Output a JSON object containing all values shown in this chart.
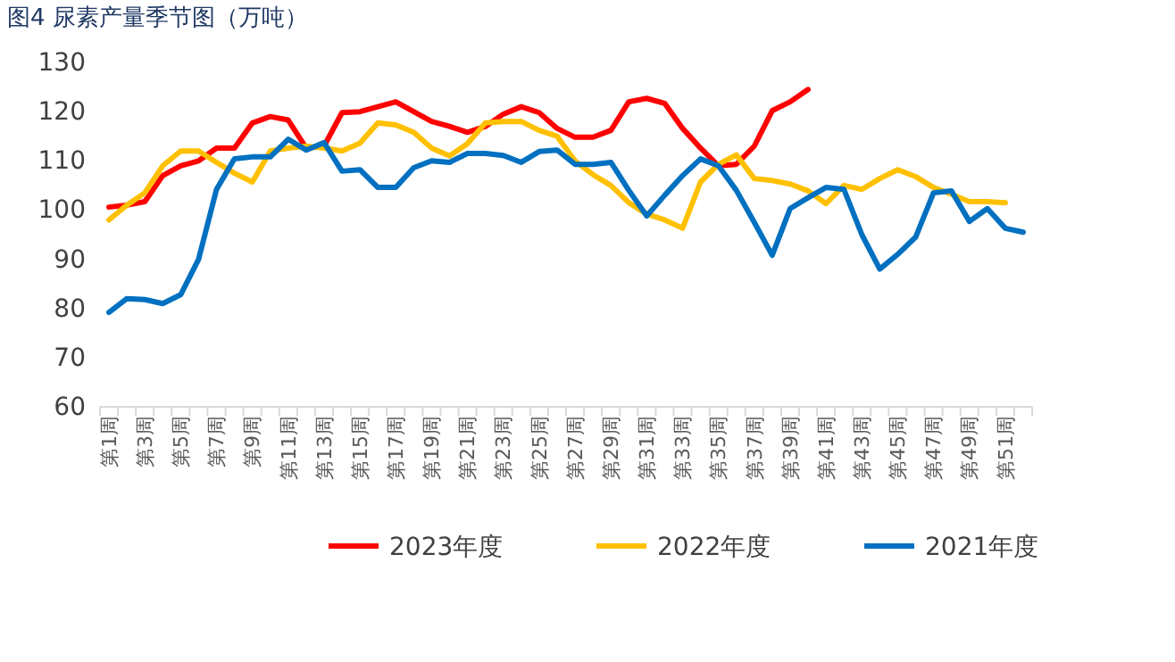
{
  "chart_data": {
    "type": "line",
    "title": "图4 尿素产量季节图（万吨）",
    "categories": [
      "第1周",
      null,
      "第3周",
      null,
      "第5周",
      null,
      "第7周",
      null,
      "第9周",
      null,
      "第11周",
      null,
      "第13周",
      null,
      "第15周",
      null,
      "第17周",
      null,
      "第19周",
      null,
      "第21周",
      null,
      "第23周",
      null,
      "第25周",
      null,
      "第27周",
      null,
      "第29周",
      null,
      "第31周",
      null,
      "第33周",
      null,
      "第35周",
      null,
      "第37周",
      null,
      "第39周",
      null,
      "第41周",
      null,
      "第43周",
      null,
      "第45周",
      null,
      "第47周",
      null,
      "第49周",
      null,
      "第51周",
      null
    ],
    "series": [
      {
        "name": "2023年度",
        "color": "#ff0000",
        "values": [
          100.6,
          101,
          101.7,
          107,
          109,
          110,
          112.6,
          112.6,
          117.7,
          119,
          118.3,
          112.6,
          113,
          119.8,
          120,
          121,
          122,
          120,
          118,
          117,
          115.8,
          117,
          119.5,
          121,
          119.8,
          116.6,
          114.8,
          114.8,
          116.2,
          122,
          122.7,
          121.7,
          116.6,
          112.6,
          109,
          109.3,
          113,
          120.2,
          122,
          124.5,
          null,
          null,
          null,
          null,
          null,
          null,
          null,
          null,
          null,
          null,
          null,
          null
        ]
      },
      {
        "name": "2022年度",
        "color": "#ffc000",
        "values": [
          98,
          101,
          103.5,
          109,
          112,
          112,
          109.7,
          107.5,
          105.7,
          112,
          112.6,
          113,
          112.6,
          112,
          113.6,
          117.7,
          117.3,
          115.8,
          112.6,
          111,
          113.5,
          117.7,
          118,
          118,
          116.2,
          115,
          110,
          107.2,
          105,
          101.5,
          99.2,
          98,
          96.3,
          105.7,
          109.3,
          111.2,
          106.4,
          106,
          105.3,
          103.9,
          101.3,
          105,
          104.2,
          106.4,
          108.2,
          106.8,
          104.6,
          103.2,
          101.7,
          101.7,
          101.5,
          null
        ]
      },
      {
        "name": "2021年度",
        "color": "#0070c0",
        "values": [
          79.2,
          82,
          81.8,
          81,
          82.8,
          90,
          104.2,
          110.4,
          110.8,
          110.8,
          114.4,
          112.2,
          113.7,
          107.9,
          108.2,
          104.6,
          104.6,
          108.6,
          110,
          109.7,
          111.5,
          111.5,
          111.1,
          109.7,
          111.9,
          112.2,
          109.3,
          109.3,
          109.7,
          104,
          98.8,
          103,
          107,
          110.4,
          109,
          104,
          97.5,
          90.8,
          100.3,
          102.5,
          104.6,
          104.2,
          95,
          88,
          91,
          94.5,
          103.5,
          103.9,
          97.7,
          100.3,
          96.3,
          95.5
        ]
      }
    ],
    "ylim": [
      60,
      130
    ],
    "yticks": [
      60,
      70,
      80,
      90,
      100,
      110,
      120,
      130
    ],
    "legend": "bottom",
    "grid": false
  }
}
